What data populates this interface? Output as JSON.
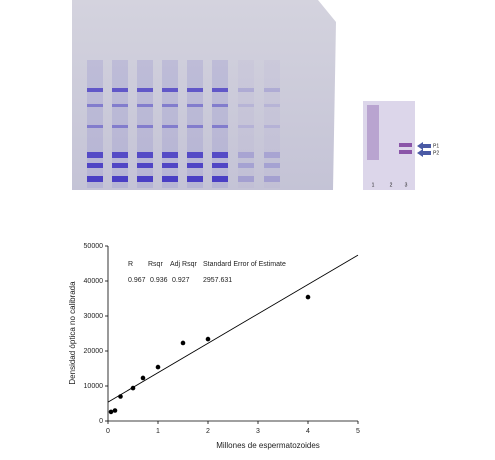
{
  "gel_image": {
    "lane_labels": [
      "1",
      "2",
      "3"
    ],
    "band_labels": [
      "P1",
      "P2"
    ]
  },
  "chart_data": {
    "type": "scatter",
    "x_label": "Millones de espermatozoides",
    "y_label": "Densidad óptica no calibrada",
    "x": [
      0.06,
      0.14,
      0.25,
      0.5,
      0.7,
      1.0,
      1.5,
      2.0,
      4.0
    ],
    "y": [
      2600,
      3000,
      7000,
      9400,
      12300,
      15400,
      22300,
      23400,
      35400
    ],
    "color": "#000000",
    "fit_line": {
      "x": [
        0,
        5
      ],
      "y": [
        5400,
        47400
      ],
      "color": "#000000"
    },
    "annotation": {
      "headers": [
        "R",
        "Rsqr",
        "Adj Rsqr",
        "Standard Error of Estimate"
      ],
      "values": [
        "0.967",
        "0.936",
        "0.927",
        "2957.631"
      ]
    },
    "xlim": [
      0,
      5
    ],
    "xticks": [
      0,
      1,
      2,
      3,
      4,
      5
    ],
    "ylim": [
      0,
      50000
    ],
    "yticks": [
      0,
      10000,
      20000,
      30000,
      40000,
      50000
    ]
  }
}
